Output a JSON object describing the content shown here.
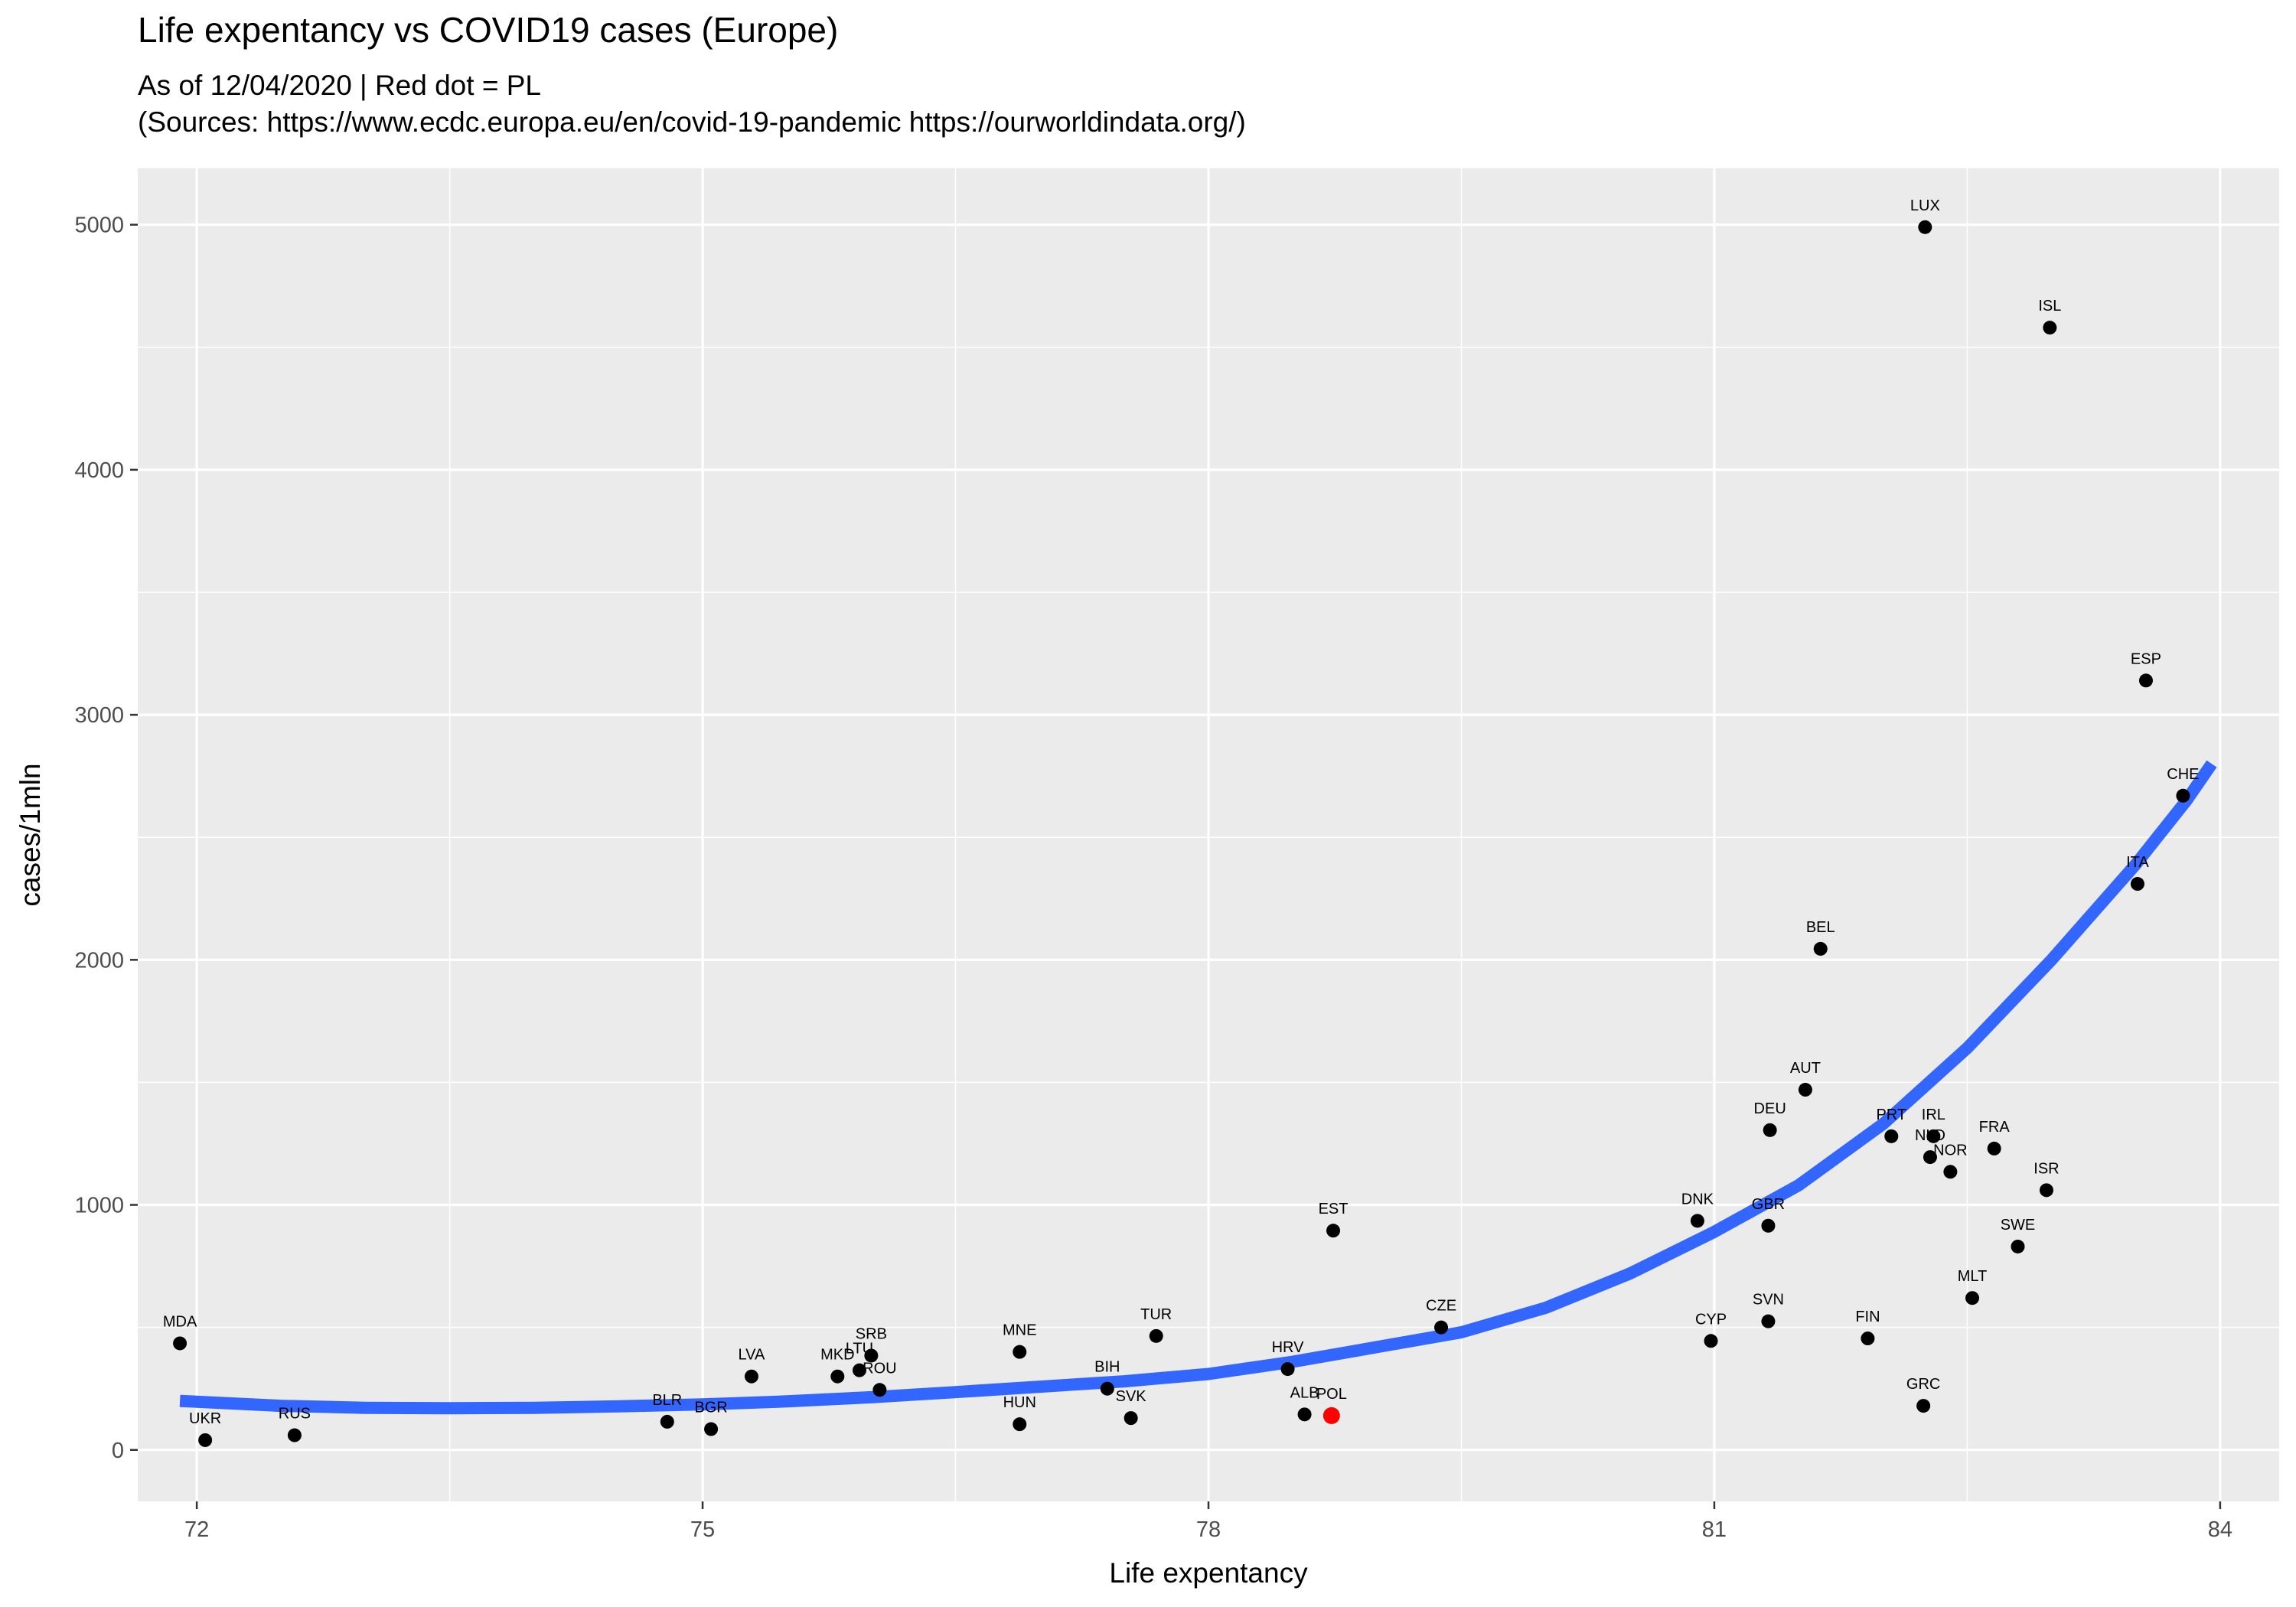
{
  "chart_data": {
    "type": "scatter",
    "title": "Life expentancy vs COVID19 cases (Europe)",
    "subtitle_lines": [
      "As of 12/04/2020 | Red dot = PL",
      "(Sources: https://www.ecdc.europa.eu/en/covid-19-pandemic https://ourworldindata.org/)"
    ],
    "xlabel": "Life expentancy",
    "ylabel": "cases/1mln",
    "xlim": [
      71.65,
      84.35
    ],
    "ylim": [
      -210,
      5230
    ],
    "x_ticks": [
      72,
      75,
      78,
      81,
      84
    ],
    "y_ticks": [
      0,
      1000,
      2000,
      3000,
      4000,
      5000
    ],
    "grid": true,
    "highlight_color": "#ff0000",
    "point_color": "#000000",
    "trend_color": "#3366ff",
    "points": [
      {
        "label": "MDA",
        "x": 71.9,
        "y": 435
      },
      {
        "label": "UKR",
        "x": 72.05,
        "y": 40
      },
      {
        "label": "RUS",
        "x": 72.58,
        "y": 60
      },
      {
        "label": "BLR",
        "x": 74.79,
        "y": 115
      },
      {
        "label": "BGR",
        "x": 75.05,
        "y": 85
      },
      {
        "label": "LVA",
        "x": 75.29,
        "y": 300
      },
      {
        "label": "MKD",
        "x": 75.8,
        "y": 300
      },
      {
        "label": "LTU",
        "x": 75.93,
        "y": 325
      },
      {
        "label": "SRB",
        "x": 76.0,
        "y": 385
      },
      {
        "label": "ROU",
        "x": 76.05,
        "y": 245
      },
      {
        "label": "MNE",
        "x": 76.88,
        "y": 400
      },
      {
        "label": "HUN",
        "x": 76.88,
        "y": 105
      },
      {
        "label": "BIH",
        "x": 77.4,
        "y": 250
      },
      {
        "label": "SVK",
        "x": 77.54,
        "y": 130
      },
      {
        "label": "TUR",
        "x": 77.69,
        "y": 465
      },
      {
        "label": "HRV",
        "x": 78.47,
        "y": 330
      },
      {
        "label": "ALB",
        "x": 78.57,
        "y": 145
      },
      {
        "label": "POL",
        "x": 78.73,
        "y": 140,
        "highlight": true
      },
      {
        "label": "EST",
        "x": 78.74,
        "y": 895
      },
      {
        "label": "CZE",
        "x": 79.38,
        "y": 500
      },
      {
        "label": "DNK",
        "x": 80.9,
        "y": 935
      },
      {
        "label": "CYP",
        "x": 80.98,
        "y": 445
      },
      {
        "label": "GBR",
        "x": 81.32,
        "y": 915
      },
      {
        "label": "SVN",
        "x": 81.32,
        "y": 525
      },
      {
        "label": "DEU",
        "x": 81.33,
        "y": 1305
      },
      {
        "label": "AUT",
        "x": 81.54,
        "y": 1470
      },
      {
        "label": "BEL",
        "x": 81.63,
        "y": 2045
      },
      {
        "label": "PRT",
        "x": 82.05,
        "y": 1280
      },
      {
        "label": "FIN",
        "x": 81.91,
        "y": 455
      },
      {
        "label": "LUX",
        "x": 82.25,
        "y": 4990
      },
      {
        "label": "GRC",
        "x": 82.24,
        "y": 180
      },
      {
        "label": "NLD",
        "x": 82.28,
        "y": 1195
      },
      {
        "label": "IRL",
        "x": 82.3,
        "y": 1280
      },
      {
        "label": "NOR",
        "x": 82.4,
        "y": 1135
      },
      {
        "label": "MLT",
        "x": 82.53,
        "y": 620
      },
      {
        "label": "FRA",
        "x": 82.66,
        "y": 1230
      },
      {
        "label": "SWE",
        "x": 82.8,
        "y": 830
      },
      {
        "label": "ISR",
        "x": 82.97,
        "y": 1060
      },
      {
        "label": "ISL",
        "x": 82.99,
        "y": 4580
      },
      {
        "label": "ESP",
        "x": 83.56,
        "y": 3140
      },
      {
        "label": "ITA",
        "x": 83.51,
        "y": 2310
      },
      {
        "label": "CHE",
        "x": 83.78,
        "y": 2670
      }
    ],
    "trend": [
      {
        "x": 71.9,
        "y": 200
      },
      {
        "x": 72.5,
        "y": 180
      },
      {
        "x": 73.0,
        "y": 172
      },
      {
        "x": 73.5,
        "y": 170
      },
      {
        "x": 74.0,
        "y": 172
      },
      {
        "x": 74.5,
        "y": 178
      },
      {
        "x": 75.0,
        "y": 186
      },
      {
        "x": 75.5,
        "y": 198
      },
      {
        "x": 76.0,
        "y": 215
      },
      {
        "x": 76.5,
        "y": 236
      },
      {
        "x": 77.0,
        "y": 258
      },
      {
        "x": 77.5,
        "y": 280
      },
      {
        "x": 78.0,
        "y": 310
      },
      {
        "x": 78.5,
        "y": 360
      },
      {
        "x": 79.0,
        "y": 420
      },
      {
        "x": 79.5,
        "y": 480
      },
      {
        "x": 80.0,
        "y": 580
      },
      {
        "x": 80.5,
        "y": 720
      },
      {
        "x": 81.0,
        "y": 890
      },
      {
        "x": 81.5,
        "y": 1080
      },
      {
        "x": 82.0,
        "y": 1330
      },
      {
        "x": 82.5,
        "y": 1640
      },
      {
        "x": 83.0,
        "y": 2000
      },
      {
        "x": 83.5,
        "y": 2390
      },
      {
        "x": 83.8,
        "y": 2650
      },
      {
        "x": 83.95,
        "y": 2800
      }
    ]
  }
}
